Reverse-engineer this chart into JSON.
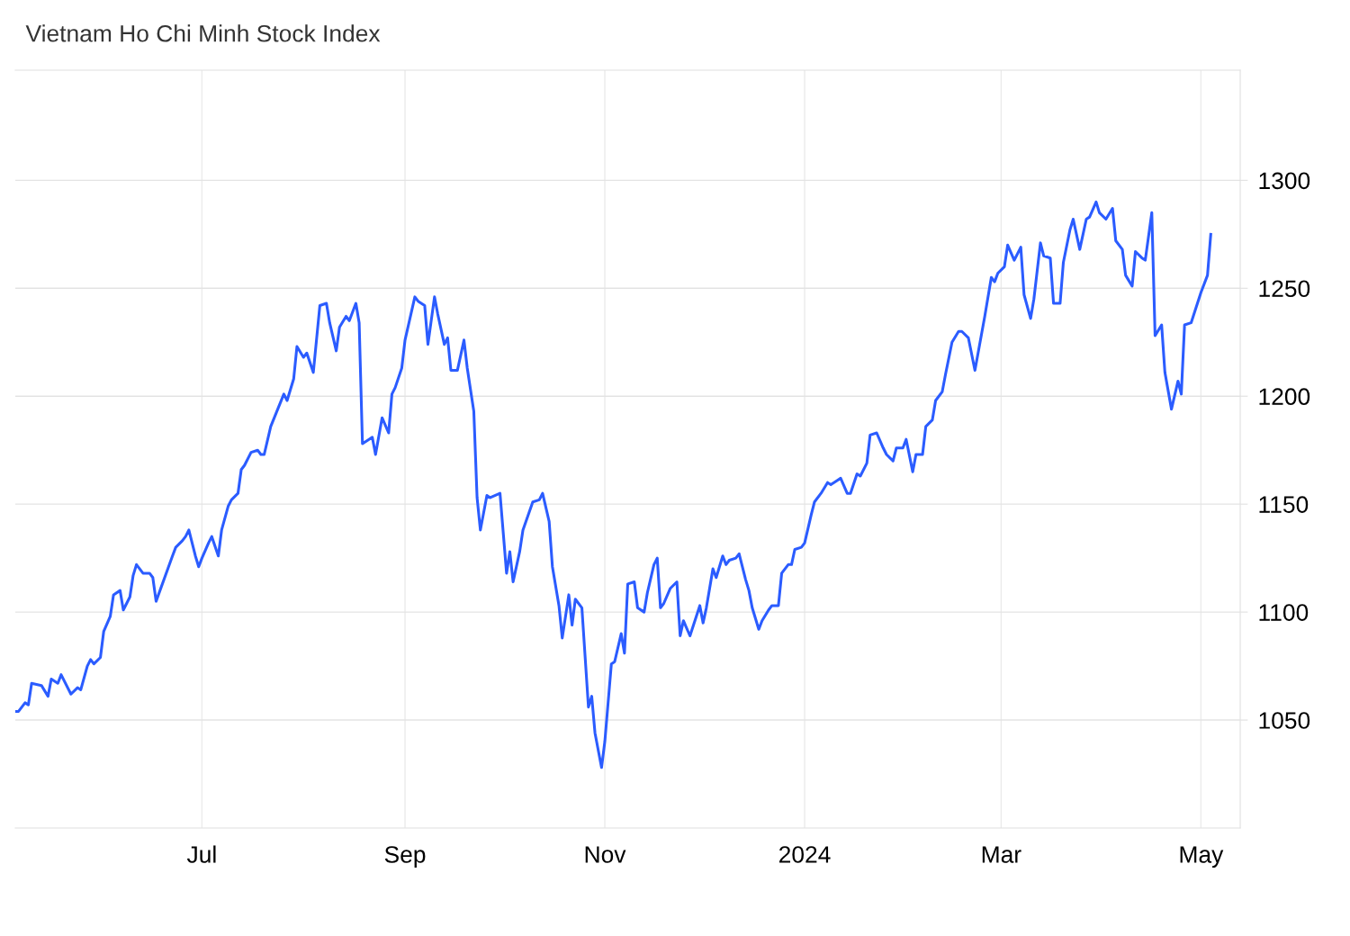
{
  "chart_data": {
    "type": "line",
    "title": "Vietnam Ho Chi Minh Stock Index",
    "x": [
      "2023-05-05",
      "2023-05-06",
      "2023-05-08",
      "2023-05-09",
      "2023-05-10",
      "2023-05-13",
      "2023-05-15",
      "2023-05-16",
      "2023-05-18",
      "2023-05-19",
      "2023-05-22",
      "2023-05-24",
      "2023-05-25",
      "2023-05-27",
      "2023-05-28",
      "2023-05-29",
      "2023-05-31",
      "2023-06-01",
      "2023-06-03",
      "2023-06-04",
      "2023-06-06",
      "2023-06-07",
      "2023-06-09",
      "2023-06-10",
      "2023-06-11",
      "2023-06-13",
      "2023-06-15",
      "2023-06-16",
      "2023-06-17",
      "2023-06-22",
      "2023-06-23",
      "2023-06-25",
      "2023-06-26",
      "2023-06-27",
      "2023-06-29",
      "2023-06-30",
      "2023-07-01",
      "2023-07-03",
      "2023-07-04",
      "2023-07-06",
      "2023-07-07",
      "2023-07-09",
      "2023-07-10",
      "2023-07-12",
      "2023-07-13",
      "2023-07-14",
      "2023-07-16",
      "2023-07-18",
      "2023-07-19",
      "2023-07-20",
      "2023-07-22",
      "2023-07-26",
      "2023-07-27",
      "2023-07-29",
      "2023-07-30",
      "2023-08-01",
      "2023-08-02",
      "2023-08-04",
      "2023-08-06",
      "2023-08-08",
      "2023-08-09",
      "2023-08-11",
      "2023-08-12",
      "2023-08-14",
      "2023-08-15",
      "2023-08-17",
      "2023-08-18",
      "2023-08-19",
      "2023-08-21",
      "2023-08-22",
      "2023-08-23",
      "2023-08-25",
      "2023-08-27",
      "2023-08-28",
      "2023-08-29",
      "2023-08-31",
      "2023-09-01",
      "2023-09-04",
      "2023-09-05",
      "2023-09-07",
      "2023-09-08",
      "2023-09-10",
      "2023-09-11",
      "2023-09-13",
      "2023-09-14",
      "2023-09-15",
      "2023-09-17",
      "2023-09-19",
      "2023-09-20",
      "2023-09-22",
      "2023-09-23",
      "2023-09-24",
      "2023-09-26",
      "2023-09-27",
      "2023-09-30",
      "2023-10-02",
      "2023-10-03",
      "2023-10-04",
      "2023-10-06",
      "2023-10-07",
      "2023-10-10",
      "2023-10-12",
      "2023-10-13",
      "2023-10-15",
      "2023-10-16",
      "2023-10-18",
      "2023-10-19",
      "2023-10-21",
      "2023-10-22",
      "2023-10-23",
      "2023-10-25",
      "2023-10-27",
      "2023-10-28",
      "2023-10-29",
      "2023-10-31",
      "2023-11-01",
      "2023-11-03",
      "2023-11-04",
      "2023-11-06",
      "2023-11-07",
      "2023-11-08",
      "2023-11-10",
      "2023-11-11",
      "2023-11-13",
      "2023-11-14",
      "2023-11-16",
      "2023-11-17",
      "2023-11-18",
      "2023-11-19",
      "2023-11-21",
      "2023-11-23",
      "2023-11-24",
      "2023-11-25",
      "2023-11-27",
      "2023-11-30",
      "2023-12-01",
      "2023-12-02",
      "2023-12-04",
      "2023-12-05",
      "2023-12-07",
      "2023-12-08",
      "2023-12-09",
      "2023-12-11",
      "2023-12-12",
      "2023-12-14",
      "2023-12-15",
      "2023-12-16",
      "2023-12-18",
      "2023-12-19",
      "2023-12-21",
      "2023-12-22",
      "2023-12-24",
      "2023-12-25",
      "2023-12-27",
      "2023-12-28",
      "2023-12-29",
      "2023-12-31",
      "2024-01-01",
      "2024-01-03",
      "2024-01-04",
      "2024-01-06",
      "2024-01-08",
      "2024-01-09",
      "2024-01-11",
      "2024-01-12",
      "2024-01-14",
      "2024-01-15",
      "2024-01-17",
      "2024-01-18",
      "2024-01-20",
      "2024-01-21",
      "2024-01-23",
      "2024-01-25",
      "2024-01-26",
      "2024-01-28",
      "2024-01-29",
      "2024-01-31",
      "2024-02-01",
      "2024-02-03",
      "2024-02-04",
      "2024-02-06",
      "2024-02-07",
      "2024-02-09",
      "2024-02-10",
      "2024-02-12",
      "2024-02-13",
      "2024-02-15",
      "2024-02-17",
      "2024-02-18",
      "2024-02-20",
      "2024-02-22",
      "2024-02-25",
      "2024-02-27",
      "2024-02-28",
      "2024-02-29",
      "2024-03-02",
      "2024-03-03",
      "2024-03-05",
      "2024-03-07",
      "2024-03-08",
      "2024-03-10",
      "2024-03-11",
      "2024-03-13",
      "2024-03-14",
      "2024-03-16",
      "2024-03-17",
      "2024-03-19",
      "2024-03-20",
      "2024-03-22",
      "2024-03-23",
      "2024-03-25",
      "2024-03-27",
      "2024-03-28",
      "2024-03-30",
      "2024-03-31",
      "2024-04-02",
      "2024-04-04",
      "2024-04-05",
      "2024-04-07",
      "2024-04-08",
      "2024-04-10",
      "2024-04-11",
      "2024-04-13",
      "2024-04-14",
      "2024-04-16",
      "2024-04-17",
      "2024-04-19",
      "2024-04-20",
      "2024-04-22",
      "2024-04-24",
      "2024-04-25",
      "2024-04-26",
      "2024-04-28",
      "2024-05-01",
      "2024-05-03",
      "2024-05-04"
    ],
    "series": [
      {
        "color": "#2b5cff",
        "values": [
          1054,
          1054,
          1058,
          1057,
          1067,
          1066,
          1061,
          1069,
          1067,
          1071,
          1062,
          1065,
          1064,
          1075,
          1078,
          1076,
          1079,
          1091,
          1098,
          1108,
          1110,
          1101,
          1107,
          1117,
          1122,
          1118,
          1118,
          1116,
          1105,
          1126,
          1130,
          1133,
          1135,
          1138,
          1126,
          1121,
          1125,
          1132,
          1135,
          1126,
          1138,
          1149,
          1152,
          1155,
          1166,
          1168,
          1174,
          1175,
          1173,
          1173,
          1186,
          1201,
          1198,
          1208,
          1223,
          1218,
          1220,
          1211,
          1242,
          1243,
          1234,
          1221,
          1232,
          1237,
          1235,
          1243,
          1234,
          1178,
          1180,
          1181,
          1173,
          1190,
          1183,
          1201,
          1204,
          1213,
          1226,
          1246,
          1244,
          1242,
          1224,
          1246,
          1238,
          1224,
          1227,
          1212,
          1212,
          1226,
          1213,
          1193,
          1153,
          1138,
          1154,
          1153,
          1155,
          1118,
          1128,
          1114,
          1128,
          1138,
          1151,
          1152,
          1155,
          1142,
          1121,
          1103,
          1088,
          1108,
          1094,
          1106,
          1102,
          1056,
          1061,
          1044,
          1028,
          1040,
          1076,
          1077,
          1090,
          1081,
          1113,
          1114,
          1102,
          1100,
          1109,
          1122,
          1125,
          1102,
          1104,
          1111,
          1114,
          1089,
          1096,
          1089,
          1103,
          1095,
          1102,
          1120,
          1116,
          1126,
          1122,
          1124,
          1125,
          1127,
          1115,
          1110,
          1102,
          1092,
          1096,
          1101,
          1103,
          1103,
          1118,
          1122,
          1122,
          1129,
          1130,
          1132,
          1145,
          1151,
          1155,
          1160,
          1159,
          1161,
          1162,
          1155,
          1155,
          1164,
          1163,
          1169,
          1182,
          1183,
          1176,
          1173,
          1170,
          1176,
          1176,
          1180,
          1165,
          1173,
          1173,
          1186,
          1189,
          1198,
          1202,
          1210,
          1225,
          1230,
          1230,
          1227,
          1212,
          1237,
          1255,
          1253,
          1257,
          1260,
          1270,
          1263,
          1269,
          1247,
          1236,
          1245,
          1271,
          1265,
          1264,
          1243,
          1243,
          1262,
          1277,
          1282,
          1268,
          1282,
          1283,
          1290,
          1285,
          1282,
          1287,
          1272,
          1268,
          1256,
          1251,
          1267,
          1264,
          1263,
          1285,
          1228,
          1233,
          1211,
          1194,
          1207,
          1201,
          1233,
          1234,
          1248,
          1256,
          1275
        ]
      }
    ],
    "xlim": [
      "2023-05-05",
      "2024-05-13"
    ],
    "xticks": [
      {
        "value": "2023-07-01",
        "label": "Jul"
      },
      {
        "value": "2023-09-01",
        "label": "Sep"
      },
      {
        "value": "2023-11-01",
        "label": "Nov"
      },
      {
        "value": "2024-01-01",
        "label": "2024"
      },
      {
        "value": "2024-03-01",
        "label": "Mar"
      },
      {
        "value": "2024-05-01",
        "label": "May"
      }
    ],
    "ylim": [
      1000,
      1351
    ],
    "yticks": [
      1050,
      1100,
      1150,
      1200,
      1250,
      1300
    ],
    "grid": true,
    "marker": "none",
    "line_style": "solid"
  }
}
